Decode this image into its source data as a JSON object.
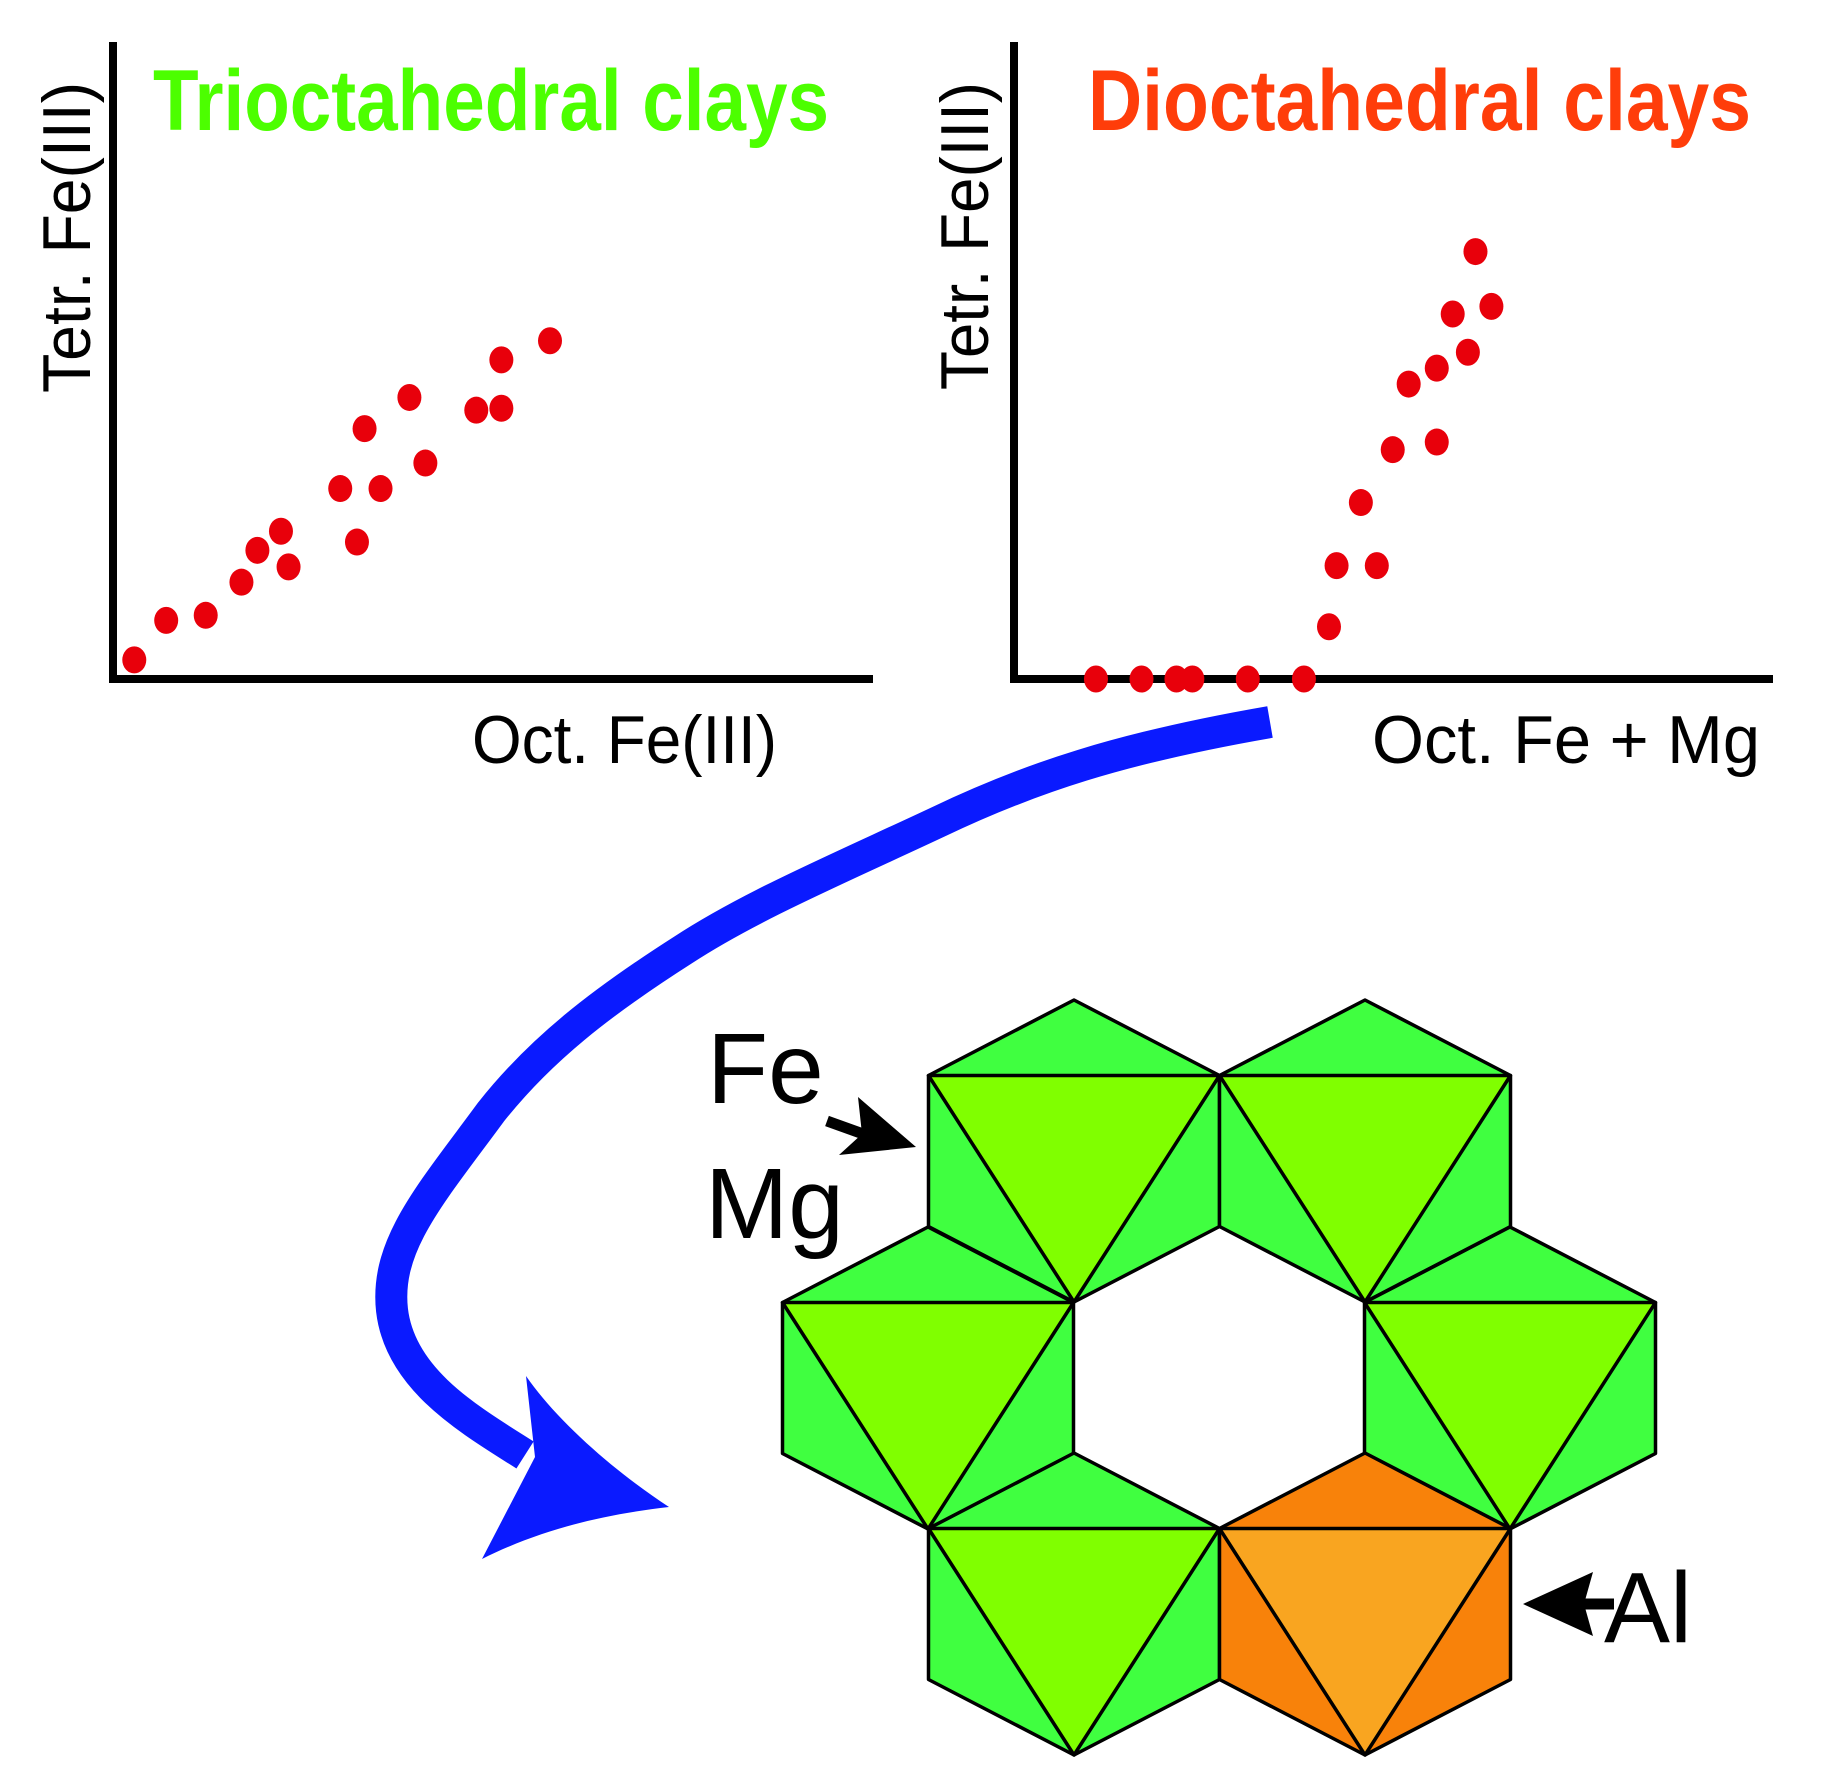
{
  "chart_data": [
    {
      "type": "scatter",
      "title": "Trioctahedral clays",
      "title_color": "#4cff00",
      "xlabel": "Oct. Fe(III)",
      "ylabel": "Tetr. Fe(III)",
      "xlim": [
        0,
        100
      ],
      "ylim": [
        0,
        100
      ],
      "grid": false,
      "marker_color": "#e8000b",
      "points": [
        [
          2.8,
          3.0
        ],
        [
          7.0,
          9.2
        ],
        [
          12.2,
          10.0
        ],
        [
          16.9,
          15.2
        ],
        [
          19.0,
          20.2
        ],
        [
          22.1,
          23.2
        ],
        [
          23.1,
          17.6
        ],
        [
          29.9,
          29.9
        ],
        [
          32.1,
          21.5
        ],
        [
          33.1,
          39.3
        ],
        [
          35.2,
          29.9
        ],
        [
          39.0,
          44.2
        ],
        [
          41.1,
          33.9
        ],
        [
          47.8,
          42.2
        ],
        [
          51.1,
          42.5
        ],
        [
          51.1,
          50.1
        ],
        [
          57.5,
          53.1
        ]
      ]
    },
    {
      "type": "scatter",
      "title": "Dioctahedral clays",
      "title_color": "#ff3d0a",
      "xlabel": "Oct. Fe + Mg",
      "ylabel": "Tetr. Fe(III)",
      "xlim": [
        0,
        100
      ],
      "ylim": [
        0,
        100
      ],
      "grid": false,
      "marker_color": "#e8000b",
      "points": [
        [
          10.8,
          0
        ],
        [
          16.8,
          0
        ],
        [
          21.4,
          0
        ],
        [
          23.5,
          0
        ],
        [
          30.8,
          0
        ],
        [
          38.2,
          0
        ],
        [
          41.5,
          8.2
        ],
        [
          42.5,
          17.8
        ],
        [
          47.8,
          17.8
        ],
        [
          45.7,
          27.7
        ],
        [
          49.9,
          36.0
        ],
        [
          55.7,
          37.2
        ],
        [
          52.0,
          46.3
        ],
        [
          55.7,
          48.8
        ],
        [
          59.8,
          51.3
        ],
        [
          57.8,
          57.3
        ],
        [
          62.9,
          58.5
        ],
        [
          60.8,
          67.1
        ]
      ]
    }
  ],
  "diagram": {
    "label_fe": "Fe",
    "label_mg": "Mg",
    "label_al": "Al",
    "colors": {
      "green_outer": "#40ff40",
      "green_inner": "#80ff00",
      "orange_outer": "#f8820a",
      "orange_inner": "#f9a520",
      "arrow_blue": "#0a1aff"
    }
  }
}
